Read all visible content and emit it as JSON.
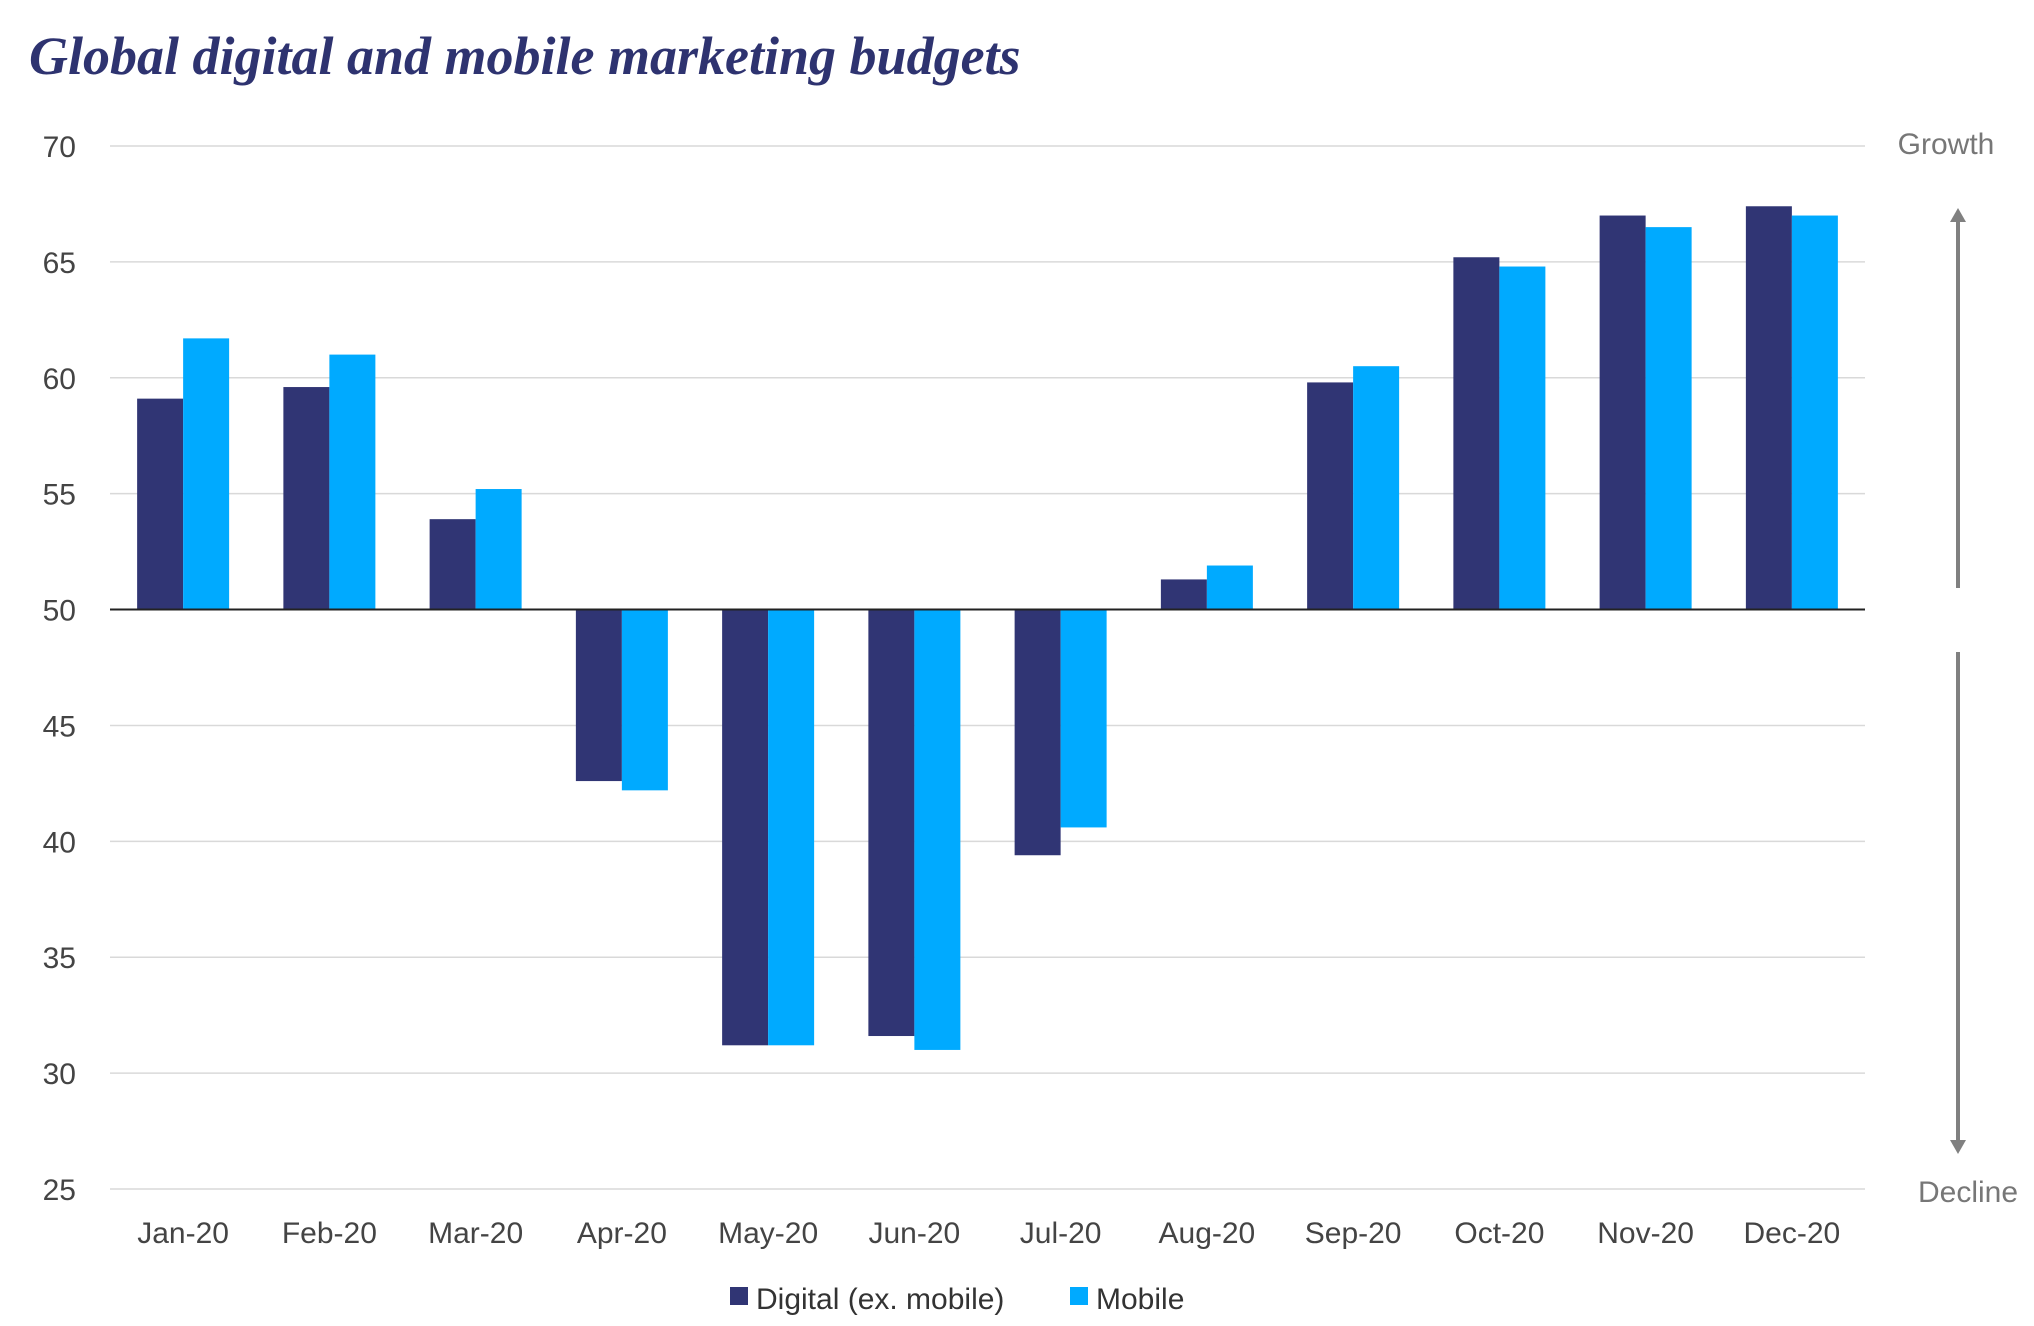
{
  "chart_data": {
    "type": "bar",
    "title": "Global digital and mobile marketing budgets",
    "xlabel": "",
    "ylabel": "",
    "ylim": [
      25,
      70
    ],
    "yticks": [
      25,
      30,
      35,
      40,
      45,
      50,
      55,
      60,
      65,
      70
    ],
    "baseline": 50,
    "grid": true,
    "legend_position": "bottom",
    "categories": [
      "Jan-20",
      "Feb-20",
      "Mar-20",
      "Apr-20",
      "May-20",
      "Jun-20",
      "Jul-20",
      "Aug-20",
      "Sep-20",
      "Oct-20",
      "Nov-20",
      "Dec-20"
    ],
    "series": [
      {
        "name": "Digital (ex. mobile)",
        "color": "#303574",
        "values": [
          59.1,
          59.6,
          53.9,
          42.6,
          31.2,
          31.6,
          39.4,
          51.3,
          59.8,
          65.2,
          67.0,
          67.4
        ]
      },
      {
        "name": "Mobile",
        "color": "#00aaff",
        "values": [
          61.7,
          61.0,
          55.2,
          42.2,
          31.2,
          31.0,
          40.6,
          51.9,
          60.5,
          64.8,
          66.5,
          67.0
        ]
      }
    ],
    "annotations": {
      "top": "Growth",
      "bottom": "Decline"
    }
  }
}
